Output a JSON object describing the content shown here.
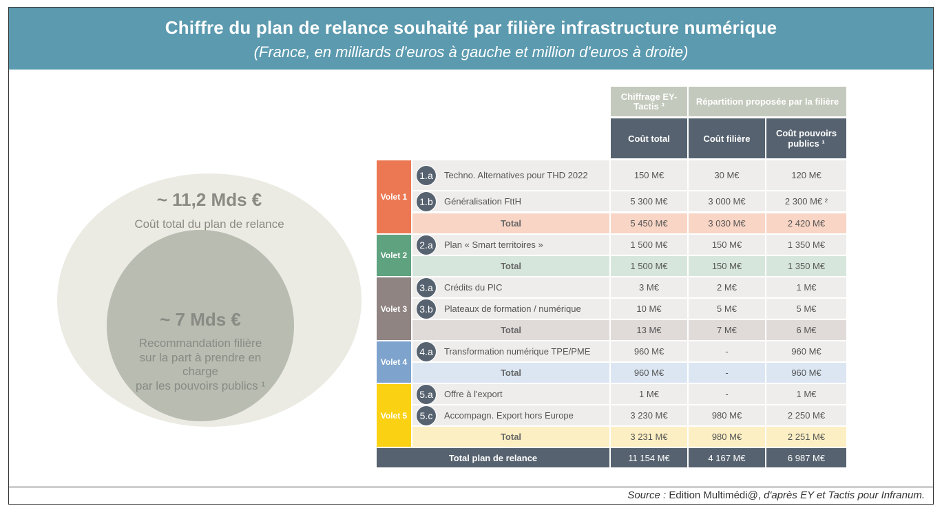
{
  "header": {
    "title": "Chiffre du plan de relance souhaité par filière infrastructure numérique",
    "subtitle": "(France, en milliards d'euros à gauche et million d'euros à droite)"
  },
  "circles": {
    "outer_value": "~ 11,2 Mds €",
    "outer_label": "Coût total du plan de relance",
    "inner_value": "~ 7 Mds €",
    "inner_label_lines": [
      "Recommandation filière",
      "sur la part à prendre en",
      "charge",
      "par les pouvoirs publics ¹"
    ]
  },
  "table": {
    "group_headers": {
      "chiffrage": "Chiffrage EY- Tactis ³",
      "repartition": "Répartition proposée par la filière"
    },
    "col_headers": {
      "cout_total": "Coût total",
      "cout_filiere": "Coût filière",
      "cout_pouvoirs": "Coût pouvoirs publics ¹"
    },
    "colors": {
      "volet1": "#ec7853",
      "volet1_total": "#f8d5c5",
      "volet2": "#5fa27f",
      "volet2_total": "#d7e6dc",
      "volet3": "#8f8482",
      "volet3_total": "#e0dbd9",
      "volet4": "#7ea4ce",
      "volet4_total": "#dbe6f2",
      "volet5": "#fbd114",
      "volet5_total": "#fcefc3",
      "row": "#eeedeb",
      "dark": "#56626f"
    },
    "volets": [
      {
        "label": "Volet 1",
        "rows": [
          {
            "code": "1.a",
            "desc": "Techno. Alternatives pour THD 2022",
            "total": "150 M€",
            "filiere": "30 M€",
            "pouvoirs": "120 M€"
          },
          {
            "code": "1.b",
            "desc": "Généralisation FttH",
            "total": "5 300 M€",
            "filiere": "3 000 M€",
            "pouvoirs": "2 300 M€ ²"
          }
        ],
        "sum": {
          "label": "Total",
          "total": "5 450 M€",
          "filiere": "3 030 M€",
          "pouvoirs": "2 420 M€"
        }
      },
      {
        "label": "Volet 2",
        "rows": [
          {
            "code": "2.a",
            "desc": "Plan « Smart territoires »",
            "total": "1 500 M€",
            "filiere": "150 M€",
            "pouvoirs": "1 350 M€"
          }
        ],
        "sum": {
          "label": "Total",
          "total": "1 500 M€",
          "filiere": "150 M€",
          "pouvoirs": "1 350 M€"
        }
      },
      {
        "label": "Volet 3",
        "rows": [
          {
            "code": "3.a",
            "desc": "Crédits du PIC",
            "total": "3 M€",
            "filiere": "2 M€",
            "pouvoirs": "1 M€"
          },
          {
            "code": "3.b",
            "desc": "Plateaux de formation / numérique",
            "total": "10 M€",
            "filiere": "5 M€",
            "pouvoirs": "5 M€"
          }
        ],
        "sum": {
          "label": "Total",
          "total": "13 M€",
          "filiere": "7 M€",
          "pouvoirs": "6 M€"
        }
      },
      {
        "label": "Volet 4",
        "rows": [
          {
            "code": "4.a",
            "desc": "Transformation numérique TPE/PME",
            "total": "960 M€",
            "filiere": "-",
            "pouvoirs": "960 M€"
          }
        ],
        "sum": {
          "label": "Total",
          "total": "960 M€",
          "filiere": "-",
          "pouvoirs": "960 M€"
        }
      },
      {
        "label": "Volet 5",
        "rows": [
          {
            "code": "5.a",
            "desc": "Offre à l'export",
            "total": "1 M€",
            "filiere": "-",
            "pouvoirs": "1 M€"
          },
          {
            "code": "5.c",
            "desc": "Accompagn. Export hors Europe",
            "total": "3 230 M€",
            "filiere": "980 M€",
            "pouvoirs": "2 250 M€"
          }
        ],
        "sum": {
          "label": "Total",
          "total": "3 231 M€",
          "filiere": "980 M€",
          "pouvoirs": "2 251 M€"
        }
      }
    ],
    "grand_total": {
      "label": "Total plan de relance",
      "total": "11 154 M€",
      "filiere": "4 167 M€",
      "pouvoirs": "6 987 M€"
    }
  },
  "chart_data": {
    "type": "table",
    "columns": [
      "Coût total",
      "Coût filière",
      "Coût pouvoirs publics"
    ],
    "unit": "M€",
    "rows": [
      {
        "id": "1.a",
        "label": "Techno. Alternatives pour THD 2022",
        "values": [
          150,
          30,
          120
        ]
      },
      {
        "id": "1.b",
        "label": "Généralisation FttH",
        "values": [
          5300,
          3000,
          2300
        ]
      },
      {
        "id": "Volet 1 Total",
        "values": [
          5450,
          3030,
          2420
        ]
      },
      {
        "id": "2.a",
        "label": "Plan « Smart territoires »",
        "values": [
          1500,
          150,
          1350
        ]
      },
      {
        "id": "Volet 2 Total",
        "values": [
          1500,
          150,
          1350
        ]
      },
      {
        "id": "3.a",
        "label": "Crédits du PIC",
        "values": [
          3,
          2,
          1
        ]
      },
      {
        "id": "3.b",
        "label": "Plateaux de formation / numérique",
        "values": [
          10,
          5,
          5
        ]
      },
      {
        "id": "Volet 3 Total",
        "values": [
          13,
          7,
          6
        ]
      },
      {
        "id": "4.a",
        "label": "Transformation numérique TPE/PME",
        "values": [
          960,
          null,
          960
        ]
      },
      {
        "id": "Volet 4 Total",
        "values": [
          960,
          null,
          960
        ]
      },
      {
        "id": "5.a",
        "label": "Offre à l'export",
        "values": [
          1,
          null,
          1
        ]
      },
      {
        "id": "5.c",
        "label": "Accompagn. Export hors Europe",
        "values": [
          3230,
          980,
          2250
        ]
      },
      {
        "id": "Volet 5 Total",
        "values": [
          3231,
          980,
          2251
        ]
      },
      {
        "id": "Total plan de relance",
        "values": [
          11154,
          4167,
          6987
        ]
      }
    ],
    "summary": [
      {
        "label": "Coût total du plan de relance",
        "value_mds": 11.2
      },
      {
        "label": "Recommandation filière sur la part à prendre en charge par les pouvoirs publics",
        "value_mds": 7
      }
    ]
  },
  "source": {
    "prefix": "Source :",
    "text": " Edition Multimédi@,",
    "suffix": " d'après EY et Tactis pour Infranum."
  }
}
